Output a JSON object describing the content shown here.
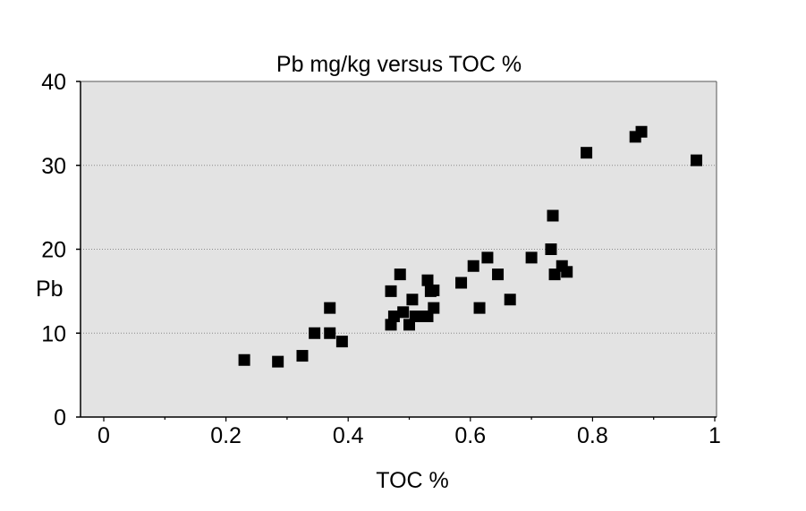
{
  "chart_data": {
    "type": "scatter",
    "title": "Pb mg/kg versus TOC %",
    "xlabel": "TOC %",
    "ylabel": "Pb",
    "xlim": [
      0,
      1
    ],
    "ylim": [
      0,
      40
    ],
    "x_ticks": [
      "0",
      "0.2",
      "0.4",
      "0.6",
      "0.8",
      "1"
    ],
    "y_ticks": [
      "0",
      "10",
      "20",
      "30",
      "40"
    ],
    "x_tick_values": [
      0,
      0.2,
      0.4,
      0.6,
      0.8,
      1
    ],
    "y_tick_values": [
      0,
      10,
      20,
      30,
      40
    ],
    "grid": "horizontal dotted",
    "legend": "none",
    "colors": {
      "plot_background": "#e3e3e3",
      "marker": "#000000",
      "gridline": "#8a8a8a",
      "axis": "#000000"
    },
    "marker_shape": "square",
    "series": [
      {
        "x": [
          0.23,
          0.285,
          0.325,
          0.345,
          0.37,
          0.37,
          0.39,
          0.47,
          0.47,
          0.475,
          0.485,
          0.49,
          0.5,
          0.505,
          0.51,
          0.52,
          0.53,
          0.53,
          0.535,
          0.54,
          0.54,
          0.585,
          0.605,
          0.615,
          0.628,
          0.645,
          0.665,
          0.7,
          0.732,
          0.735,
          0.738,
          0.75,
          0.758,
          0.79,
          0.87,
          0.88,
          0.97
        ],
        "y": [
          6.8,
          6.6,
          7.3,
          10,
          13,
          10,
          9,
          11,
          15,
          12,
          17,
          12.5,
          11,
          14,
          12,
          12,
          12,
          16.3,
          15,
          13,
          15.1,
          16,
          18,
          13,
          19,
          17,
          14,
          19,
          20,
          24,
          17,
          18,
          17.3,
          31.5,
          33.4,
          34,
          30.6
        ]
      }
    ]
  }
}
